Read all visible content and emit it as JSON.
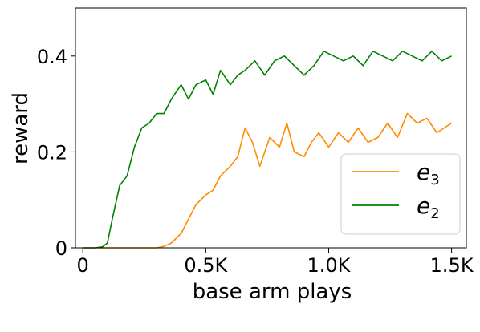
{
  "chart_data": {
    "type": "line",
    "xlabel": "base arm plays",
    "ylabel": "reward",
    "xlim": [
      -30,
      1560
    ],
    "ylim": [
      0,
      0.5
    ],
    "x_ticks": [
      0,
      500,
      1000,
      1500
    ],
    "x_tick_labels": [
      "0",
      "0.5K",
      "1.0K",
      "1.5K"
    ],
    "y_ticks": [
      0,
      0.2,
      0.4
    ],
    "y_tick_labels": [
      "0",
      "0.2",
      "0.4"
    ],
    "grid": false,
    "legend_position": "bottom-right",
    "series": [
      {
        "name": "e3",
        "legend_base": "e",
        "legend_sub": "3",
        "color": "#ff8c00",
        "x": [
          0,
          100,
          200,
          300,
          330,
          360,
          400,
          430,
          460,
          500,
          530,
          560,
          600,
          630,
          660,
          690,
          720,
          760,
          800,
          830,
          860,
          900,
          930,
          960,
          1000,
          1040,
          1080,
          1120,
          1160,
          1200,
          1240,
          1280,
          1320,
          1360,
          1400,
          1440,
          1470,
          1500
        ],
        "y": [
          0,
          0,
          0,
          0,
          0.003,
          0.01,
          0.03,
          0.06,
          0.09,
          0.11,
          0.12,
          0.15,
          0.17,
          0.19,
          0.25,
          0.22,
          0.17,
          0.23,
          0.21,
          0.26,
          0.2,
          0.19,
          0.22,
          0.24,
          0.21,
          0.24,
          0.22,
          0.25,
          0.22,
          0.23,
          0.26,
          0.23,
          0.28,
          0.26,
          0.27,
          0.24,
          0.25,
          0.26
        ]
      },
      {
        "name": "e2",
        "legend_base": "e",
        "legend_sub": "2",
        "color": "#008000",
        "x": [
          0,
          50,
          80,
          100,
          120,
          150,
          180,
          210,
          240,
          270,
          300,
          330,
          360,
          400,
          430,
          460,
          500,
          530,
          560,
          600,
          630,
          660,
          700,
          740,
          780,
          820,
          860,
          900,
          940,
          980,
          1020,
          1060,
          1100,
          1140,
          1180,
          1220,
          1260,
          1300,
          1340,
          1380,
          1420,
          1460,
          1500
        ],
        "y": [
          0,
          0,
          0.002,
          0.01,
          0.06,
          0.13,
          0.15,
          0.21,
          0.25,
          0.26,
          0.28,
          0.28,
          0.31,
          0.34,
          0.31,
          0.34,
          0.35,
          0.32,
          0.37,
          0.34,
          0.36,
          0.37,
          0.39,
          0.36,
          0.39,
          0.4,
          0.38,
          0.36,
          0.38,
          0.41,
          0.4,
          0.39,
          0.4,
          0.38,
          0.41,
          0.4,
          0.39,
          0.41,
          0.4,
          0.39,
          0.41,
          0.39,
          0.4
        ]
      }
    ]
  }
}
